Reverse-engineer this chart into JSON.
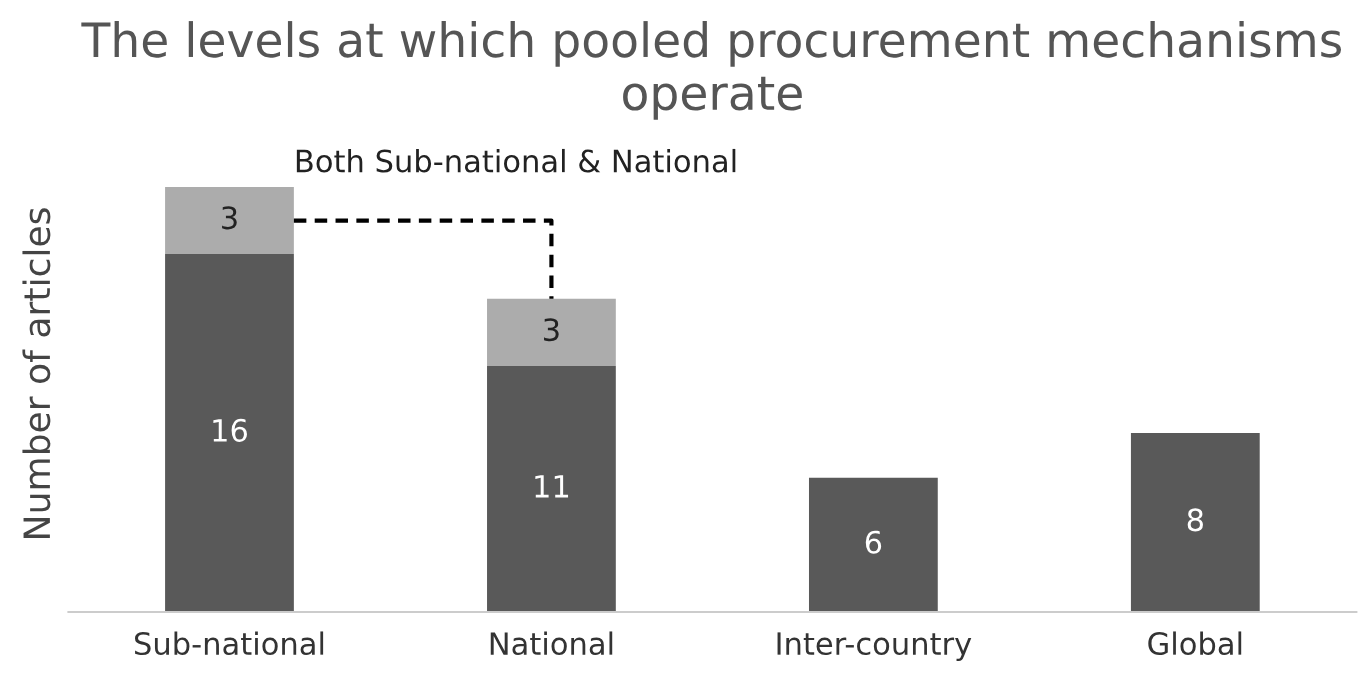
{
  "chart_data": {
    "type": "bar",
    "title": "The levels at which pooled procurement mechanisms operate",
    "ylabel": "Number of articles",
    "categories": [
      "Sub-national",
      "National",
      "Inter-country",
      "Global"
    ],
    "stacked": true,
    "data_labels": true,
    "grid": false,
    "legend": false,
    "series": [
      {
        "color": "#595959",
        "values": [
          16,
          11,
          6,
          8
        ]
      },
      {
        "color": "#acacac",
        "values": [
          3,
          3,
          null,
          null
        ]
      }
    ],
    "annotations": [
      "Both Sub-national & National"
    ]
  }
}
